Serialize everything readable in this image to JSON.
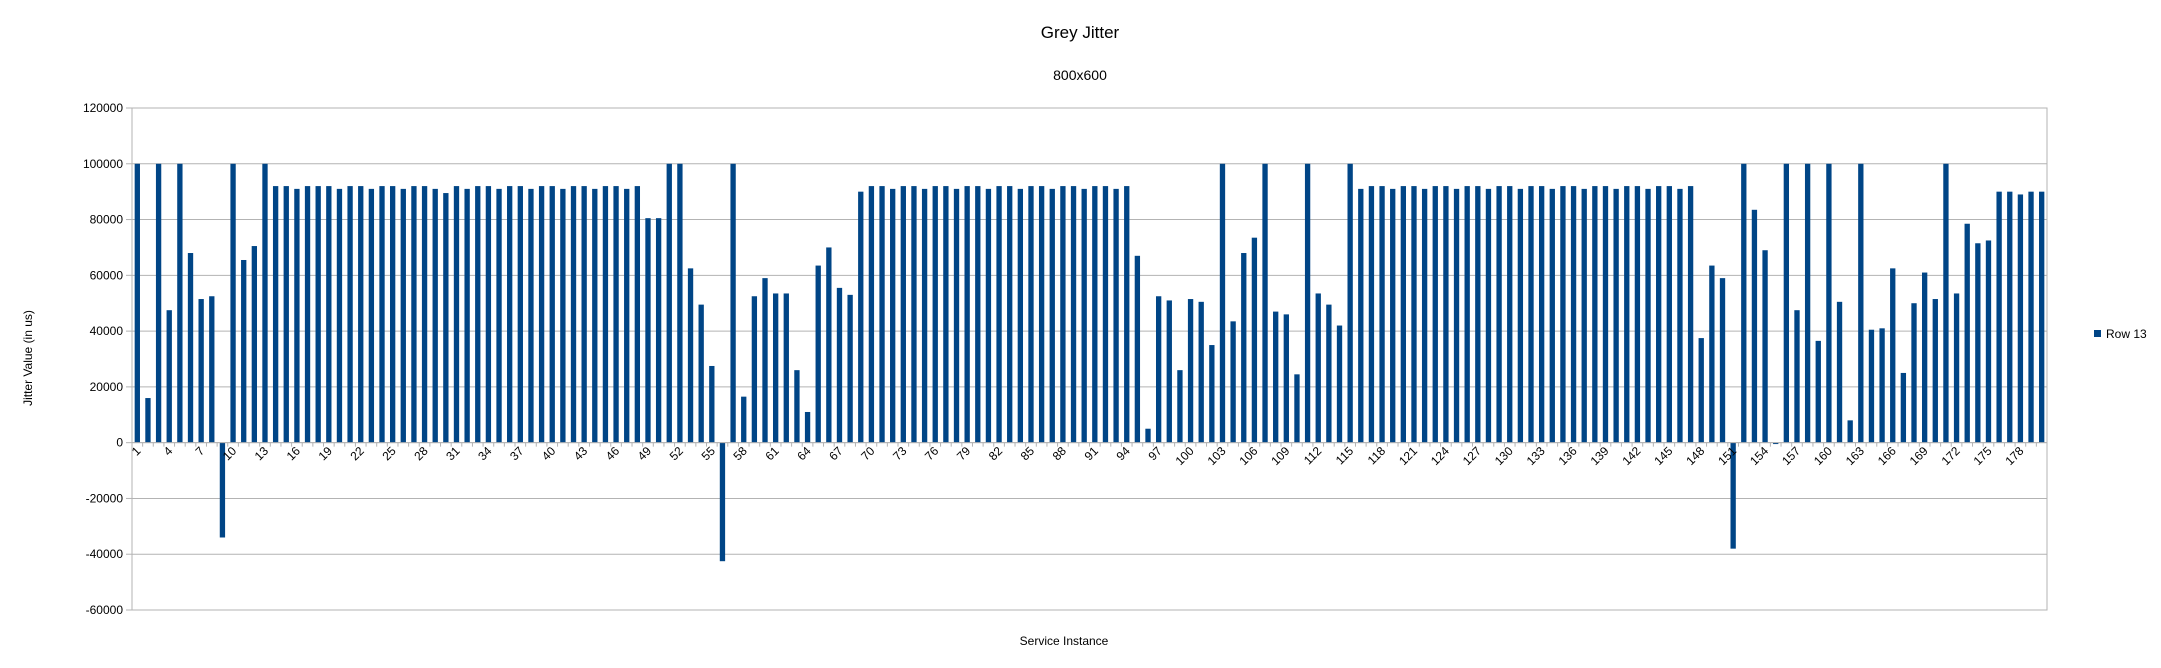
{
  "colors": {
    "bar": "#004586",
    "grid": "#b3b3b3",
    "frame": "#b3b3b3"
  },
  "chart_data": {
    "type": "bar",
    "title": "Grey Jitter",
    "subtitle": "800x600",
    "xlabel": "Service Instance",
    "ylabel": "Jitter Value (in us)",
    "ylim": [
      -60000,
      120000
    ],
    "yticks": [
      -60000,
      -40000,
      -20000,
      0,
      20000,
      40000,
      60000,
      80000,
      100000,
      120000
    ],
    "grid": true,
    "legend_position": "right",
    "xtick_labels": [
      1,
      4,
      7,
      10,
      13,
      16,
      19,
      22,
      25,
      28,
      31,
      34,
      37,
      40,
      43,
      46,
      49,
      52,
      55,
      58,
      61,
      64,
      67,
      70,
      73,
      76,
      79,
      82,
      85,
      88,
      91,
      94,
      97,
      100,
      103,
      106,
      109,
      112,
      115,
      118,
      121,
      124,
      127,
      130,
      133,
      136,
      139,
      142,
      145,
      148,
      151,
      154,
      157,
      160,
      163,
      166,
      169,
      172,
      175,
      178
    ],
    "categories": [
      1,
      2,
      3,
      4,
      5,
      6,
      7,
      8,
      9,
      10,
      11,
      12,
      13,
      14,
      15,
      16,
      17,
      18,
      19,
      20,
      21,
      22,
      23,
      24,
      25,
      26,
      27,
      28,
      29,
      30,
      31,
      32,
      33,
      34,
      35,
      36,
      37,
      38,
      39,
      40,
      41,
      42,
      43,
      44,
      45,
      46,
      47,
      48,
      49,
      50,
      51,
      52,
      53,
      54,
      55,
      56,
      57,
      58,
      59,
      60,
      61,
      62,
      63,
      64,
      65,
      66,
      67,
      68,
      69,
      70,
      71,
      72,
      73,
      74,
      75,
      76,
      77,
      78,
      79,
      80,
      81,
      82,
      83,
      84,
      85,
      86,
      87,
      88,
      89,
      90,
      91,
      92,
      93,
      94,
      95,
      96,
      97,
      98,
      99,
      100,
      101,
      102,
      103,
      104,
      105,
      106,
      107,
      108,
      109,
      110,
      111,
      112,
      113,
      114,
      115,
      116,
      117,
      118,
      119,
      120,
      121,
      122,
      123,
      124,
      125,
      126,
      127,
      128,
      129,
      130,
      131,
      132,
      133,
      134,
      135,
      136,
      137,
      138,
      139,
      140,
      141,
      142,
      143,
      144,
      145,
      146,
      147,
      148,
      149,
      150,
      151,
      152,
      153,
      154,
      155,
      156,
      157,
      158,
      159,
      160,
      161,
      162,
      163,
      164,
      165,
      166,
      167,
      168,
      169,
      170,
      171,
      172,
      173,
      174,
      175,
      176,
      177,
      178,
      179,
      180
    ],
    "series": [
      {
        "name": "Row 13",
        "values": [
          100000,
          16000,
          100000,
          47500,
          100000,
          68000,
          51500,
          52500,
          -34000,
          100000,
          65500,
          70500,
          100000,
          92000,
          92000,
          91000,
          92000,
          92000,
          92000,
          91000,
          92000,
          92000,
          91000,
          92000,
          92000,
          91000,
          92000,
          92000,
          91000,
          89500,
          92000,
          91000,
          92000,
          92000,
          91000,
          92000,
          92000,
          91000,
          92000,
          92000,
          91000,
          92000,
          92000,
          91000,
          92000,
          92000,
          91000,
          92000,
          80500,
          80500,
          100000,
          100000,
          62500,
          49500,
          27500,
          -42500,
          100000,
          16500,
          52500,
          59000,
          53500,
          53500,
          26000,
          11000,
          63500,
          70000,
          55500,
          53000,
          90000,
          92000,
          92000,
          91000,
          92000,
          92000,
          91000,
          92000,
          92000,
          91000,
          92000,
          92000,
          91000,
          92000,
          92000,
          91000,
          92000,
          92000,
          91000,
          92000,
          92000,
          91000,
          92000,
          92000,
          91000,
          92000,
          67000,
          5000,
          52500,
          51000,
          26000,
          51500,
          50500,
          35000,
          100000,
          43500,
          68000,
          73500,
          100000,
          47000,
          46000,
          24500,
          100000,
          53500,
          49500,
          42000,
          100000,
          91000,
          92000,
          92000,
          91000,
          92000,
          92000,
          91000,
          92000,
          92000,
          91000,
          92000,
          92000,
          91000,
          92000,
          92000,
          91000,
          92000,
          92000,
          91000,
          92000,
          92000,
          91000,
          92000,
          92000,
          91000,
          92000,
          92000,
          91000,
          92000,
          92000,
          91000,
          92000,
          37500,
          63500,
          59000,
          -38000,
          100000,
          83500,
          69000,
          -500,
          100000,
          47500,
          100000,
          36500,
          100000,
          50500,
          8000,
          100000,
          40500,
          41000,
          62500,
          25000,
          50000,
          61000,
          51500,
          100000,
          53500,
          78500,
          71500,
          72500,
          90000,
          90000,
          89000,
          90000,
          90000
        ]
      }
    ]
  }
}
